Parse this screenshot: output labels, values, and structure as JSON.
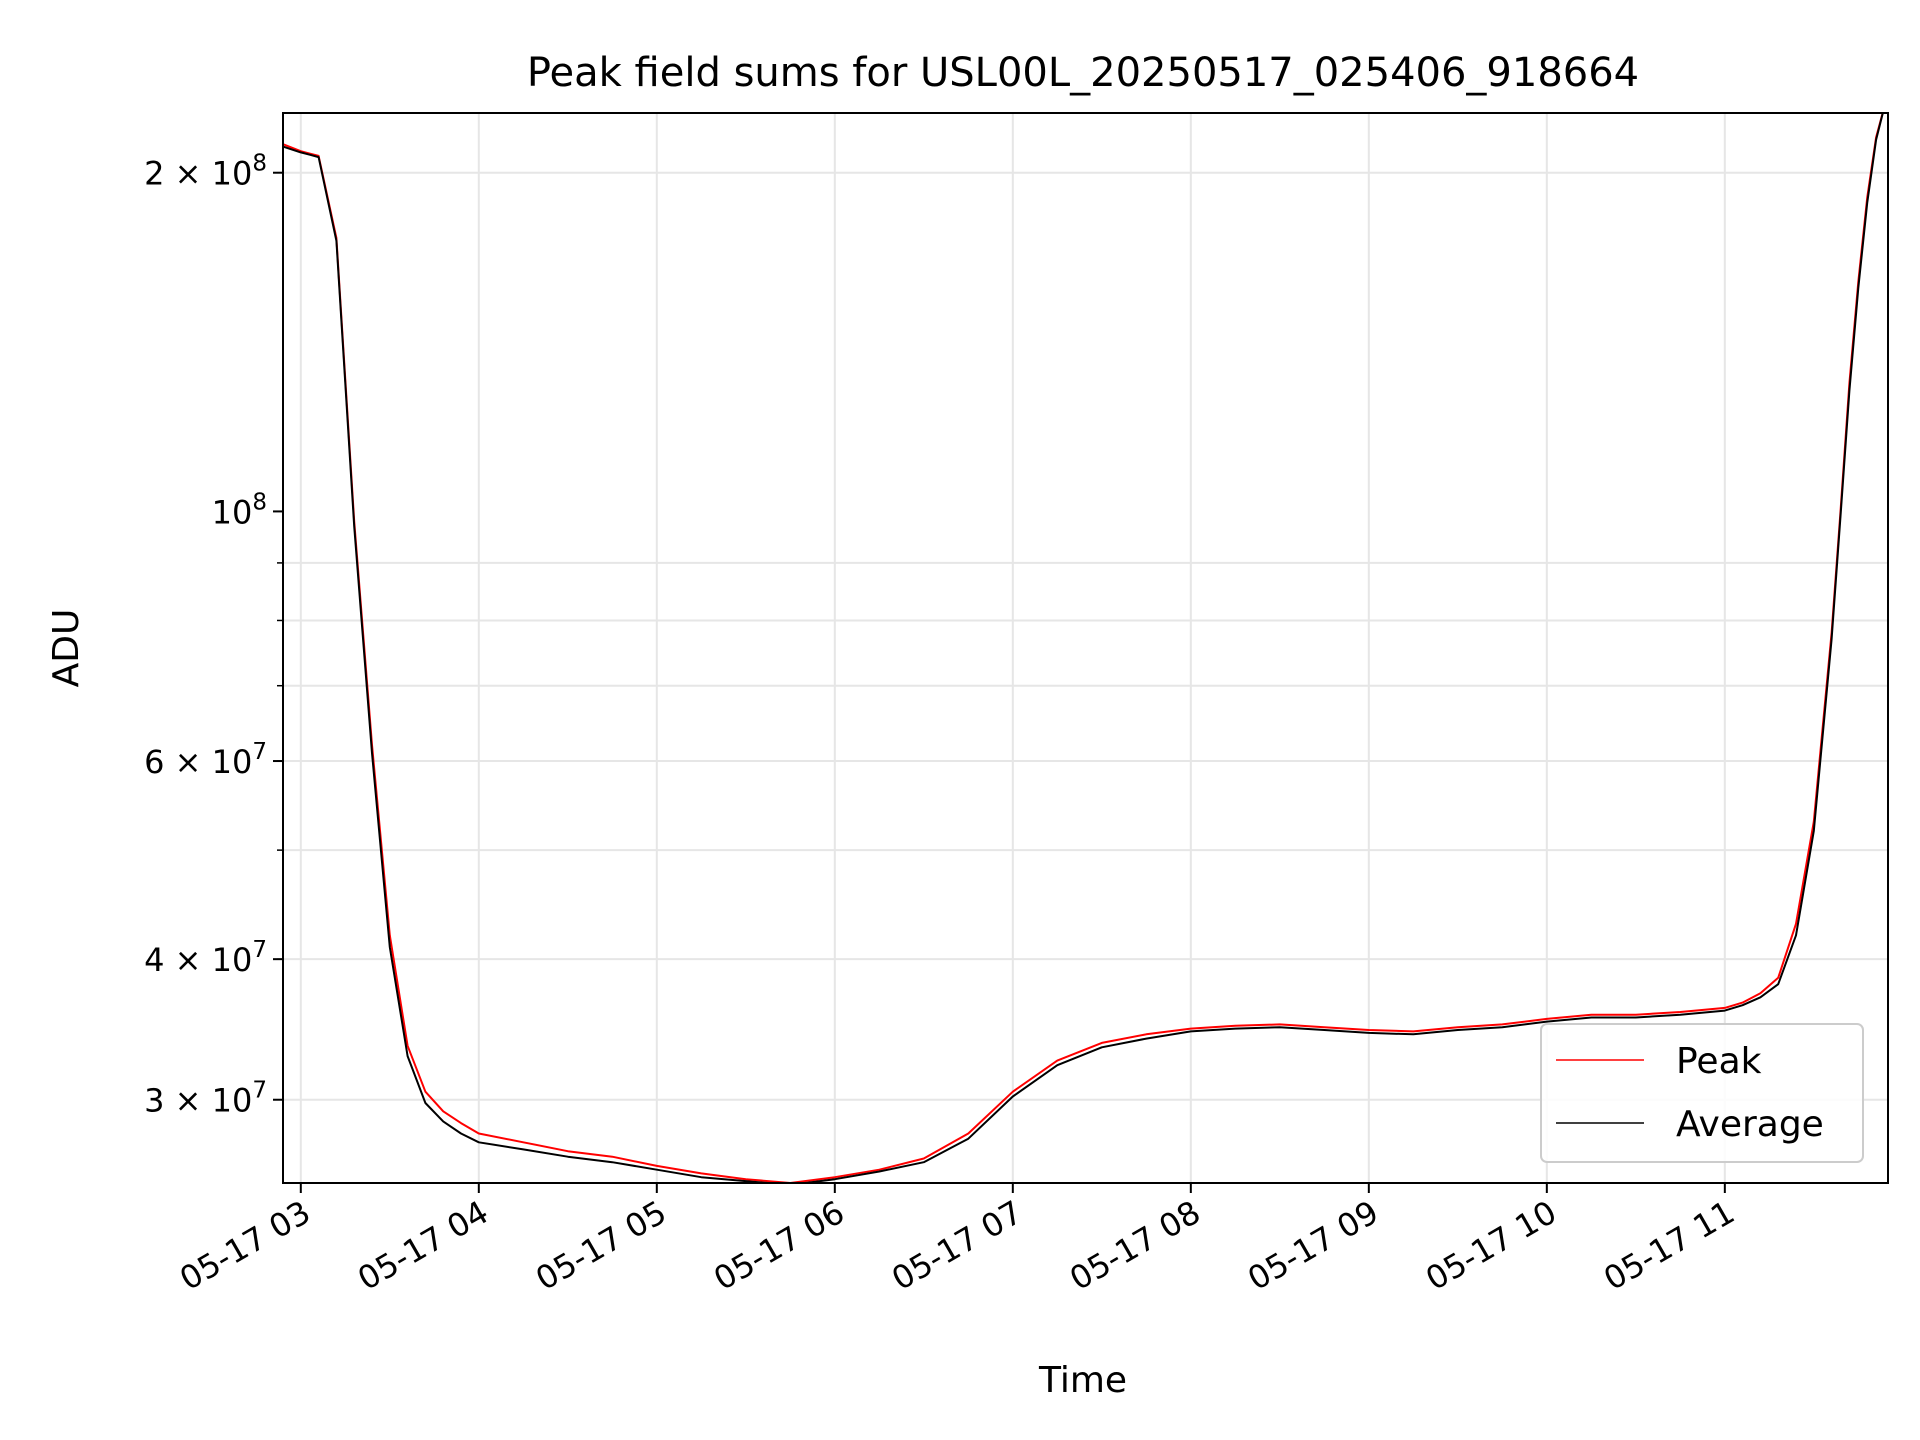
{
  "chart_data": {
    "type": "line",
    "title": "Peak field sums for USL00L_20250517_025406_918664",
    "xlabel": "Time",
    "ylabel": "ADU",
    "y_scale": "log",
    "ylim": [
      25300000,
      226000000
    ],
    "xlim": [
      "05-17 02:54",
      "05-17 11:55"
    ],
    "grid": true,
    "legend_position": "lower-right",
    "x_ticks": [
      "05-17 03",
      "05-17 04",
      "05-17 05",
      "05-17 06",
      "05-17 07",
      "05-17 08",
      "05-17 09",
      "05-17 10",
      "05-17 11"
    ],
    "y_ticks": [
      {
        "value": 30000000,
        "mantissa": "3",
        "exp": "7"
      },
      {
        "value": 40000000,
        "mantissa": "4",
        "exp": "7"
      },
      {
        "value": 60000000,
        "mantissa": "6",
        "exp": "7"
      },
      {
        "value": 100000000,
        "mantissa": "",
        "exp": "8"
      },
      {
        "value": 200000000,
        "mantissa": "2",
        "exp": "8"
      }
    ],
    "x_time_unit": "hours",
    "x": [
      2.9,
      3.0,
      3.05,
      3.1,
      3.2,
      3.3,
      3.4,
      3.5,
      3.6,
      3.7,
      3.8,
      3.9,
      4.0,
      4.25,
      4.5,
      4.75,
      5.0,
      5.25,
      5.5,
      5.75,
      6.0,
      6.25,
      6.5,
      6.75,
      7.0,
      7.25,
      7.5,
      7.75,
      8.0,
      8.25,
      8.5,
      8.75,
      9.0,
      9.25,
      9.5,
      9.75,
      10.0,
      10.25,
      10.5,
      10.75,
      11.0,
      11.1,
      11.2,
      11.3,
      11.4,
      11.5,
      11.6,
      11.65,
      11.7,
      11.75,
      11.8,
      11.85,
      11.9
    ],
    "series": [
      {
        "name": "Peak",
        "color": "#ff0000",
        "values": [
          212000000,
          209000000,
          208000000,
          207000000,
          175000000,
          98000000,
          62000000,
          42000000,
          33500000,
          30500000,
          29300000,
          28600000,
          28000000,
          27500000,
          27000000,
          26700000,
          26200000,
          25800000,
          25500000,
          25300000,
          25600000,
          26000000,
          26600000,
          28000000,
          30500000,
          32500000,
          33700000,
          34300000,
          34700000,
          34900000,
          35000000,
          34800000,
          34600000,
          34500000,
          34800000,
          35000000,
          35400000,
          35700000,
          35700000,
          35900000,
          36200000,
          36600000,
          37300000,
          38500000,
          43000000,
          53000000,
          78000000,
          100000000,
          130000000,
          160000000,
          190000000,
          215000000,
          230000000
        ]
      },
      {
        "name": "Average",
        "color": "#000000",
        "values": [
          211000000,
          208500000,
          207500000,
          206500000,
          174000000,
          97000000,
          61000000,
          41000000,
          32800000,
          29800000,
          28700000,
          28000000,
          27500000,
          27100000,
          26700000,
          26400000,
          26000000,
          25600000,
          25400000,
          25200000,
          25500000,
          25900000,
          26400000,
          27700000,
          30200000,
          32200000,
          33400000,
          34000000,
          34500000,
          34700000,
          34800000,
          34600000,
          34400000,
          34300000,
          34600000,
          34800000,
          35200000,
          35500000,
          35500000,
          35700000,
          36000000,
          36400000,
          37000000,
          38000000,
          42000000,
          52000000,
          77000000,
          99000000,
          128000000,
          158000000,
          188000000,
          214000000,
          230000000
        ]
      }
    ]
  }
}
